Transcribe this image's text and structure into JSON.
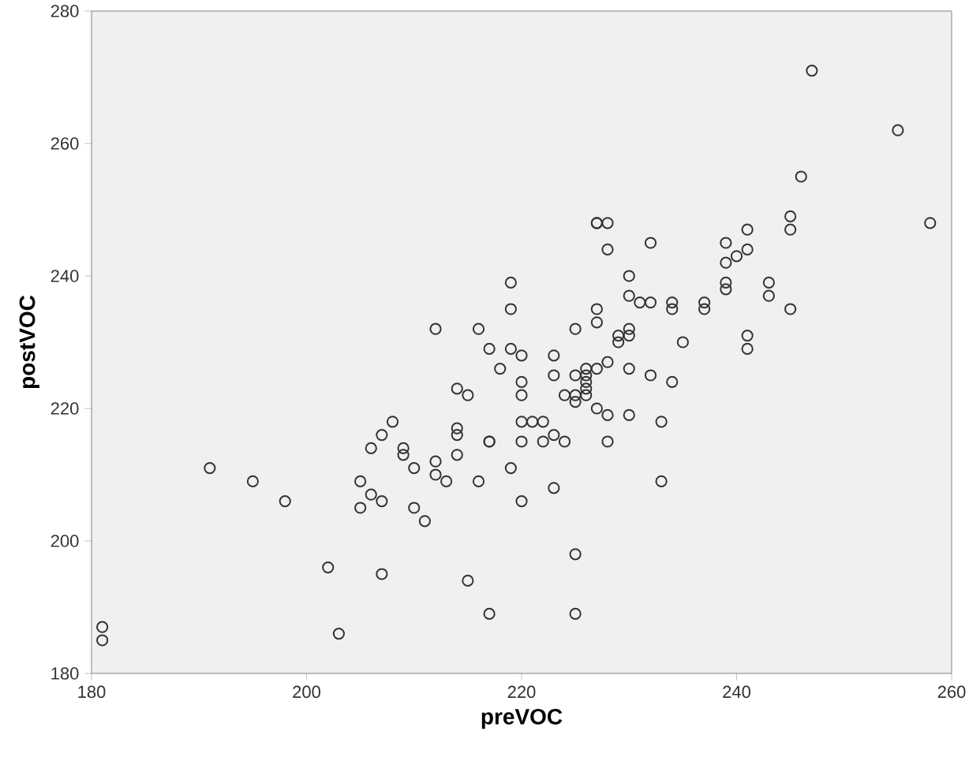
{
  "chart_data": {
    "type": "scatter",
    "xlabel": "preVOC",
    "ylabel": "postVOC",
    "marker": "circle",
    "grid": false,
    "xlim": [
      180,
      260
    ],
    "xticks": [
      180,
      200,
      220,
      240,
      260
    ],
    "ylim": [
      180,
      280
    ],
    "yticks": [
      180,
      200,
      220,
      240,
      260,
      280
    ],
    "series": [
      {
        "color": "#333333",
        "x": [
          181,
          181,
          191,
          195,
          198,
          202,
          203,
          207,
          205,
          206,
          205,
          207,
          206,
          209,
          209,
          210,
          210,
          219,
          219,
          212,
          216,
          217,
          219,
          218,
          220,
          214,
          215,
          208,
          207,
          212,
          212,
          213,
          214,
          214,
          214,
          217,
          217,
          216,
          219,
          211,
          215,
          217,
          227,
          227,
          228,
          228,
          232,
          241,
          239,
          240,
          241,
          239,
          239,
          239,
          230,
          230,
          231,
          232,
          234,
          234,
          237,
          237,
          227,
          227,
          225,
          229,
          229,
          230,
          230,
          235,
          241,
          241,
          223,
          223,
          220,
          220,
          225,
          226,
          226,
          226,
          226,
          226,
          227,
          228,
          230,
          232,
          234,
          224,
          225,
          225,
          227,
          228,
          230,
          233,
          220,
          221,
          222,
          223,
          220,
          222,
          224,
          228,
          220,
          223,
          233,
          225,
          225,
          247,
          255,
          258,
          246,
          245,
          245,
          245,
          243,
          243
        ],
        "values": [
          187,
          185,
          211,
          209,
          206,
          196,
          186,
          195,
          209,
          207,
          205,
          206,
          214,
          214,
          213,
          211,
          205,
          239,
          235,
          232,
          232,
          229,
          229,
          226,
          228,
          223,
          222,
          218,
          216,
          212,
          210,
          209,
          217,
          216,
          213,
          215,
          215,
          209,
          211,
          203,
          194,
          189,
          248,
          248,
          248,
          244,
          245,
          247,
          245,
          243,
          244,
          242,
          239,
          238,
          240,
          237,
          236,
          236,
          236,
          235,
          236,
          235,
          235,
          233,
          232,
          231,
          230,
          232,
          231,
          230,
          231,
          229,
          228,
          225,
          224,
          222,
          225,
          226,
          225,
          224,
          223,
          222,
          226,
          227,
          226,
          225,
          224,
          222,
          222,
          221,
          220,
          219,
          219,
          218,
          218,
          218,
          218,
          216,
          215,
          215,
          215,
          215,
          206,
          208,
          209,
          198,
          189,
          271,
          262,
          248,
          255,
          249,
          247,
          235,
          239,
          237
        ]
      }
    ]
  }
}
